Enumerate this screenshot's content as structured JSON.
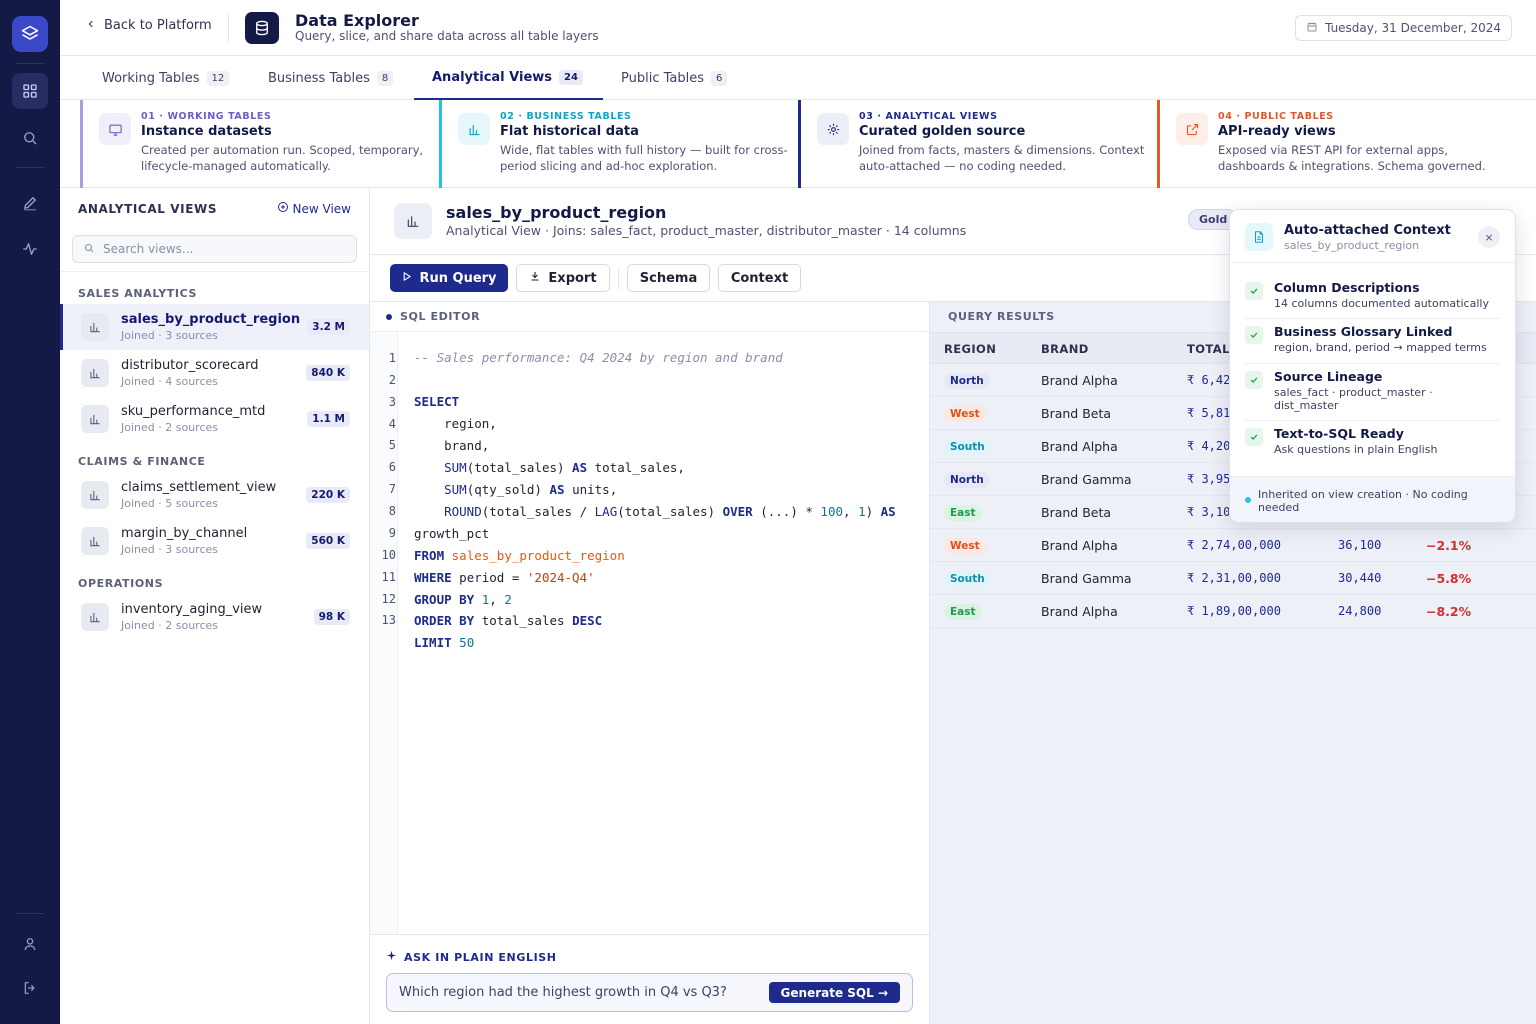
{
  "header": {
    "back_label": "Back to Platform",
    "title": "Data Explorer",
    "subtitle": "Query, slice, and share data across all table layers",
    "date": "Tuesday, 31 December, 2024"
  },
  "tabs": [
    {
      "label": "Working Tables",
      "count": "12"
    },
    {
      "label": "Business Tables",
      "count": "8"
    },
    {
      "label": "Analytical Views",
      "count": "24"
    },
    {
      "label": "Public Tables",
      "count": "6"
    }
  ],
  "layers": [
    {
      "eyebrow": "01 · WORKING TABLES",
      "title": "Instance datasets",
      "desc": "Created per automation run. Scoped, temporary, lifecycle-managed automatically.",
      "color": "#6d5cc9"
    },
    {
      "eyebrow": "02 · BUSINESS TABLES",
      "title": "Flat historical data",
      "desc": "Wide, flat tables with full history — built for cross-period slicing and ad-hoc exploration.",
      "color": "#0ea5c6"
    },
    {
      "eyebrow": "03 · ANALYTICAL VIEWS",
      "title": "Curated golden source",
      "desc": "Joined from facts, masters & dimensions. Context auto-attached — no coding needed.",
      "color": "#1e2a8c"
    },
    {
      "eyebrow": "04 · PUBLIC TABLES",
      "title": "API-ready views",
      "desc": "Exposed via REST API for external apps, dashboards & integrations. Schema governed.",
      "color": "#e2572b"
    }
  ],
  "sidebar": {
    "title": "ANALYTICAL VIEWS",
    "new_view": "New View",
    "search_placeholder": "Search views...",
    "groups": [
      {
        "label": "SALES ANALYTICS",
        "items": [
          {
            "name": "sales_by_product_region",
            "meta": "Joined · 3 sources",
            "rows": "3.2 M"
          },
          {
            "name": "distributor_scorecard",
            "meta": "Joined · 4 sources",
            "rows": "840 K"
          },
          {
            "name": "sku_performance_mtd",
            "meta": "Joined · 2 sources",
            "rows": "1.1 M"
          }
        ]
      },
      {
        "label": "CLAIMS & FINANCE",
        "items": [
          {
            "name": "claims_settlement_view",
            "meta": "Joined · 5 sources",
            "rows": "220 K"
          },
          {
            "name": "margin_by_channel",
            "meta": "Joined · 3 sources",
            "rows": "560 K"
          }
        ]
      },
      {
        "label": "OPERATIONS",
        "items": [
          {
            "name": "inventory_aging_view",
            "meta": "Joined · 2 sources",
            "rows": "98 K"
          }
        ]
      }
    ]
  },
  "view": {
    "title": "sales_by_product_region",
    "subtitle": "Analytical View · Joins: sales_fact, product_master, distributor_master · 14 columns",
    "badge": "Gold"
  },
  "toolbar": {
    "run": "Run Query",
    "export": "Export",
    "schema": "Schema",
    "context": "Context"
  },
  "editor": {
    "label": "SQL EDITOR",
    "line_numbers": [
      "1",
      "2",
      "3",
      "4",
      "5",
      "6",
      "7",
      "8",
      "9",
      "10",
      "11",
      "12",
      "13"
    ],
    "lines": {
      "l1": "-- Sales performance: Q4 2024 by region and brand",
      "select": "SELECT",
      "region": "    region,",
      "brand": "    brand,",
      "sum": "SUM",
      "sum1_rest": "(total_sales) ",
      "as": "AS",
      "sum1_alias": " total_sales,",
      "sum2_rest": "(qty_sold) ",
      "sum2_alias": " units,",
      "round": "ROUND",
      "round_mid": "(total_sales / ",
      "lag": "LAG",
      "lag_mid": "(total_sales) ",
      "over": "OVER",
      "over_mid": " (...) * ",
      "n100": "100",
      "comma": ", ",
      "n1": "1",
      "close": ") ",
      "growth": "growth_pct",
      "from": "FROM",
      "from_table": "sales_by_product_region",
      "where": "WHERE",
      "where_mid": " period = ",
      "period": "'2024-Q4'",
      "group_by": "GROUP BY",
      "g1": "1",
      "g2": "2",
      "order_by": "ORDER BY",
      "order_mid": " total_sales ",
      "desc": "DESC",
      "limit": "LIMIT",
      "n50": "50"
    }
  },
  "ask": {
    "label": "ASK IN PLAIN ENGLISH",
    "question": "Which region had the highest growth in Q4 vs Q3?",
    "button": "Generate SQL →"
  },
  "results": {
    "label": "QUERY RESULTS",
    "columns": [
      "REGION",
      "BRAND",
      "TOTAL"
    ],
    "rows": [
      {
        "region": "North",
        "brand": "Brand Alpha",
        "total": "₹ 6,42",
        "units": "",
        "growth": ""
      },
      {
        "region": "West",
        "brand": "Brand Beta",
        "total": "₹ 5,81",
        "units": "",
        "growth": ""
      },
      {
        "region": "South",
        "brand": "Brand Alpha",
        "total": "₹ 4,20",
        "units": "",
        "growth": ""
      },
      {
        "region": "North",
        "brand": "Brand Gamma",
        "total": "₹ 3,95",
        "units": "",
        "growth": ""
      },
      {
        "region": "East",
        "brand": "Brand Beta",
        "total": "₹ 3,10",
        "units": "",
        "growth": ""
      },
      {
        "region": "West",
        "brand": "Brand Alpha",
        "total": "₹ 2,74,00,000",
        "units": "36,100",
        "growth": "−2.1%"
      },
      {
        "region": "South",
        "brand": "Brand Gamma",
        "total": "₹ 2,31,00,000",
        "units": "30,440",
        "growth": "−5.8%"
      },
      {
        "region": "East",
        "brand": "Brand Alpha",
        "total": "₹ 1,89,00,000",
        "units": "24,800",
        "growth": "−8.2%"
      }
    ],
    "region_colors": {
      "North": {
        "bg": "#e6e8f7",
        "fg": "#1e2a8c"
      },
      "West": {
        "bg": "#fde8e0",
        "fg": "#d9531e"
      },
      "South": {
        "bg": "#dff3f8",
        "fg": "#0e8fb0"
      },
      "East": {
        "bg": "#dcf3e4",
        "fg": "#1f9a4f"
      }
    }
  },
  "context_popover": {
    "title": "Auto-attached Context",
    "subtitle": "sales_by_product_region",
    "close": "×",
    "items": [
      {
        "title": "Column Descriptions",
        "desc": "14 columns documented automatically"
      },
      {
        "title": "Business Glossary Linked",
        "desc": "region, brand, period → mapped terms"
      },
      {
        "title": "Source Lineage",
        "desc": "sales_fact · product_master · dist_master"
      },
      {
        "title": "Text-to-SQL Ready",
        "desc": "Ask questions in plain English"
      }
    ],
    "footer": "Inherited on view creation · No coding needed"
  }
}
